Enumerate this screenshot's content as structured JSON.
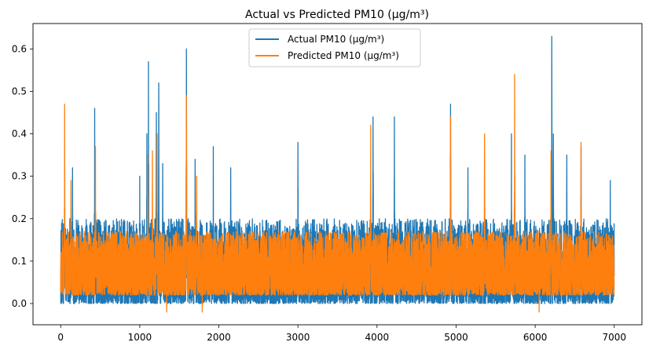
{
  "chart_data": {
    "type": "line",
    "title": "Actual vs Predicted PM10 (μg/m³)",
    "xlabel": "",
    "ylabel": "",
    "xlim": [
      -350,
      7350
    ],
    "ylim": [
      -0.05,
      0.66
    ],
    "x_ticks": [
      0,
      1000,
      2000,
      3000,
      4000,
      5000,
      6000,
      7000
    ],
    "y_ticks": [
      0.0,
      0.1,
      0.2,
      0.3,
      0.4,
      0.5,
      0.6
    ],
    "x_tick_labels": [
      "0",
      "1000",
      "2000",
      "3000",
      "4000",
      "5000",
      "6000",
      "7000"
    ],
    "y_tick_labels": [
      "0.0",
      "0.1",
      "0.2",
      "0.3",
      "0.4",
      "0.5",
      "0.6"
    ],
    "grid": false,
    "legend_position": "upper center",
    "n_points": 7000,
    "series": [
      {
        "name": "Actual PM10 (μg/m³)",
        "color": "#1f77b4",
        "range": [
          0.0,
          0.2
        ],
        "peaks": [
          [
            50,
            0.2
          ],
          [
            150,
            0.32
          ],
          [
            430,
            0.46
          ],
          [
            1000,
            0.3
          ],
          [
            1090,
            0.4
          ],
          [
            1110,
            0.57
          ],
          [
            1210,
            0.45
          ],
          [
            1240,
            0.52
          ],
          [
            1290,
            0.33
          ],
          [
            1590,
            0.6
          ],
          [
            1700,
            0.34
          ],
          [
            1930,
            0.37
          ],
          [
            2150,
            0.32
          ],
          [
            3000,
            0.38
          ],
          [
            3950,
            0.44
          ],
          [
            4220,
            0.44
          ],
          [
            4930,
            0.47
          ],
          [
            5150,
            0.32
          ],
          [
            5700,
            0.4
          ],
          [
            5870,
            0.35
          ],
          [
            6210,
            0.63
          ],
          [
            6230,
            0.4
          ],
          [
            6400,
            0.35
          ],
          [
            6580,
            0.37
          ],
          [
            6950,
            0.29
          ]
        ]
      },
      {
        "name": "Predicted PM10 (μg/m³)",
        "color": "#ff7f0e",
        "range": [
          0.02,
          0.17
        ],
        "peaks": [
          [
            50,
            0.47
          ],
          [
            130,
            0.29
          ],
          [
            440,
            0.37
          ],
          [
            1100,
            0.35
          ],
          [
            1160,
            0.36
          ],
          [
            1220,
            0.4
          ],
          [
            1590,
            0.49
          ],
          [
            1720,
            0.3
          ],
          [
            1340,
            -0.02
          ],
          [
            1790,
            -0.02
          ],
          [
            3920,
            0.42
          ],
          [
            4930,
            0.44
          ],
          [
            5360,
            0.4
          ],
          [
            5740,
            0.54
          ],
          [
            6050,
            -0.02
          ],
          [
            6200,
            0.36
          ],
          [
            6580,
            0.38
          ]
        ]
      }
    ]
  }
}
